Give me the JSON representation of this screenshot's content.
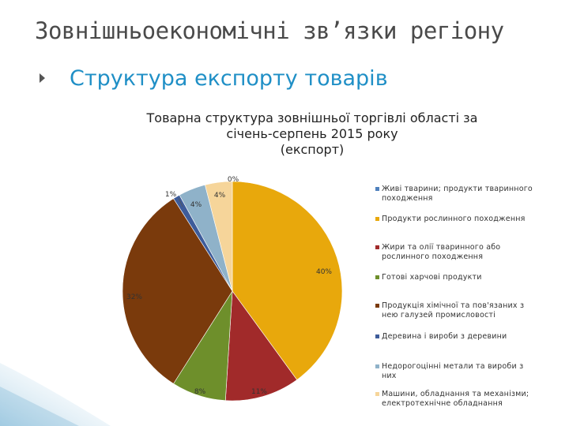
{
  "slide": {
    "title": "Зовнішньоекономічні зв’язки регіону",
    "subtitle": "Структура експорту товарів"
  },
  "chart_data": {
    "type": "pie",
    "title_lines": [
      "Товарна структура зовнішньої торгівлі області за",
      "січень-серпень 2015 року",
      "(експорт)"
    ],
    "series": [
      {
        "label": "Живі тварини; продукти тваринного походження",
        "value": 0,
        "display": "0%",
        "color": "#4f81bd"
      },
      {
        "label": "Продукти рослинного походження",
        "value": 40,
        "display": "40%",
        "color": "#e8a80c"
      },
      {
        "label": "Жири та олії тваринного або рослинного походження",
        "value": 11,
        "display": "11%",
        "color": "#a12a2a"
      },
      {
        "label": "Готові харчові продукти",
        "value": 8,
        "display": "8%",
        "color": "#6e8f2b"
      },
      {
        "label": "Продукція хімічної та пов'язаних з нею галузей промисловості",
        "value": 32,
        "display": "32%",
        "color": "#7a3a0c"
      },
      {
        "label": "Деревина і вироби з деревини",
        "value": 1,
        "display": "1%",
        "color": "#3e5c9a"
      },
      {
        "label": "Недорогоцінні метали та вироби з них",
        "value": 4,
        "display": "4%",
        "color": "#8fb2c9"
      },
      {
        "label": "Машини, обладнання та механізми; електротехнічне обладнання",
        "value": 4,
        "display": "4%",
        "color": "#f6d59a"
      }
    ],
    "legend_position": "right"
  }
}
